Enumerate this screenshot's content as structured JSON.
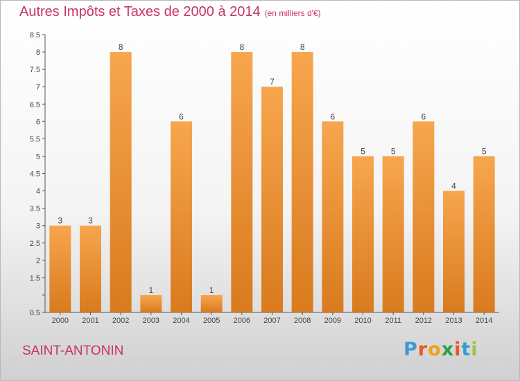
{
  "title": "Autres Impôts et Taxes de 2000 à 2014",
  "subtitle": "(en milliers d'€)",
  "place": "SAINT-ANTONIN",
  "logo": {
    "letters": [
      "P",
      "r",
      "o",
      "x",
      "i",
      "t",
      "i"
    ],
    "colors": [
      "#3a9ad9",
      "#e8562a",
      "#f0a11c",
      "#2aa043",
      "#e8562a",
      "#3a9ad9",
      "#9bc53d"
    ]
  },
  "colors": {
    "bar_top": "#f7a64e",
    "bar_bottom": "#d97a1e",
    "title": "#c8326a"
  },
  "chart_data": {
    "type": "bar",
    "categories": [
      "2000",
      "2001",
      "2002",
      "2003",
      "2004",
      "2005",
      "2006",
      "2007",
      "2008",
      "2009",
      "2010",
      "2011",
      "2012",
      "2013",
      "2014"
    ],
    "values": [
      3,
      3,
      8,
      1,
      6,
      1,
      8,
      7,
      8,
      6,
      5,
      5,
      6,
      4,
      5
    ],
    "yticks": [
      "0.5",
      "",
      "1.5",
      "2",
      "2.5",
      "3",
      "3.5",
      "4",
      "4.5",
      "5",
      "5.5",
      "6",
      "6.5",
      "7",
      "7.5",
      "8",
      "8.5"
    ],
    "ylim": [
      0.5,
      8.5
    ],
    "grid": false
  }
}
